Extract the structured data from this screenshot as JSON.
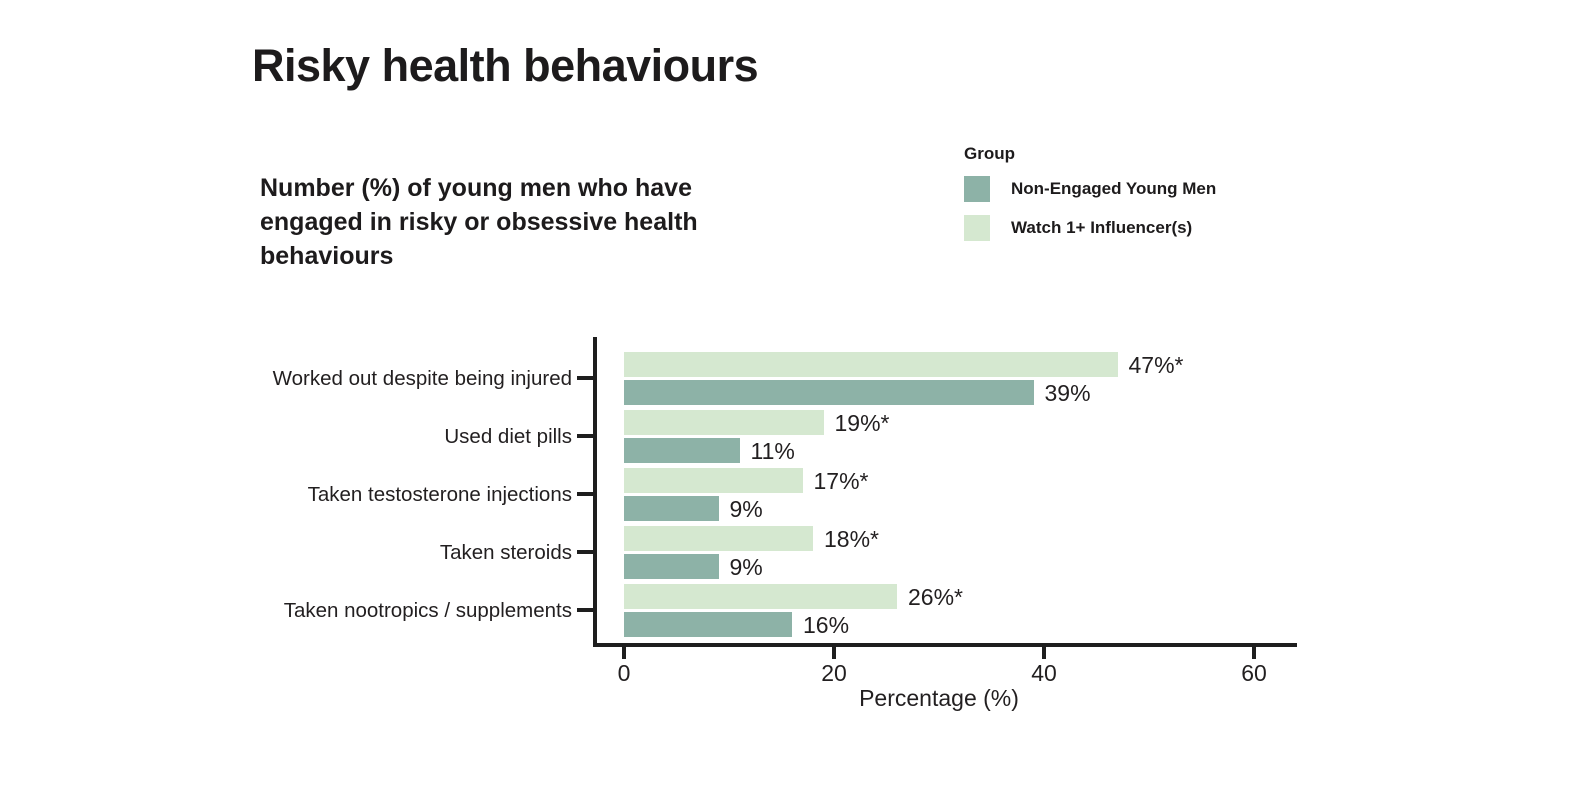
{
  "page": {
    "background": "#ffffff"
  },
  "title": "Risky health behaviours",
  "subtitle": "Number (%) of young men who have engaged in risky or obsessive health behaviours",
  "legend": {
    "title": "Group",
    "items": [
      {
        "label": "Non-Engaged Young Men",
        "color": "#8DB2A7"
      },
      {
        "label": "Watch 1+ Influencer(s)",
        "color": "#D5E8D0"
      }
    ]
  },
  "chart_data": {
    "type": "bar",
    "orientation": "horizontal",
    "title": "Risky health behaviours",
    "subtitle": "Number (%) of young men who have engaged in risky or obsessive health behaviours",
    "categories": [
      "Worked out despite being injured",
      "Used diet pills",
      "Taken testosterone injections",
      "Taken steroids",
      "Taken nootropics / supplements"
    ],
    "series": [
      {
        "name": "Watch 1+ Influencer(s)",
        "color": "#D5E8D0",
        "values": [
          47,
          19,
          17,
          18,
          26
        ],
        "labels": [
          "47%*",
          "19%*",
          "17%*",
          "18%*",
          "26%*"
        ]
      },
      {
        "name": "Non-Engaged Young Men",
        "color": "#8DB2A7",
        "values": [
          39,
          11,
          9,
          9,
          16
        ],
        "labels": [
          "39%",
          "11%",
          "9%",
          "9%",
          "16%"
        ]
      }
    ],
    "xlabel": "Percentage (%)",
    "xlim": [
      0,
      64
    ],
    "xticks": [
      0,
      20,
      40,
      60
    ],
    "grid": false,
    "legend_position": "top-right"
  }
}
